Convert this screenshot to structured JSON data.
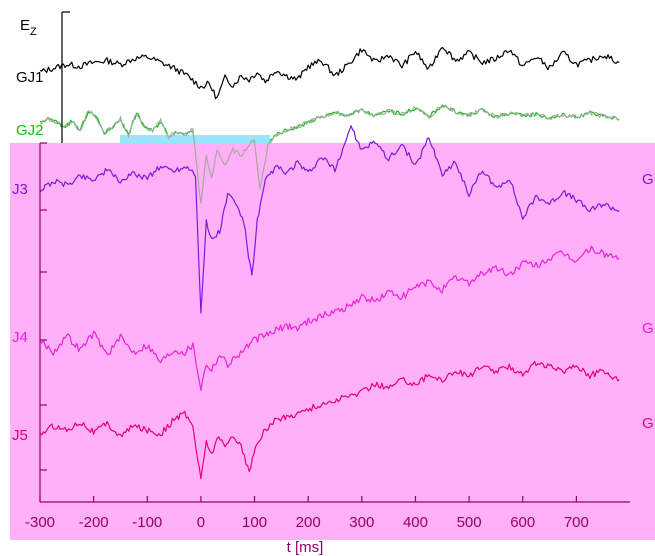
{
  "colors": {
    "overlay": "#ffb0f7",
    "axis": "#990066",
    "GJ1": "#000000",
    "GJ2": "#00c800",
    "GJ3": "#7a1adf",
    "GJ4": "#ee22dd",
    "GJ5": "#e6007a",
    "ghost": "#a8a8a8",
    "cyan_strip": "#80e0ff",
    "ylabel": "#000000"
  },
  "chart_data": {
    "type": "line",
    "title": "",
    "xlabel": "t [ms]",
    "ylabel_main": "E",
    "ylabel_sub": "Z",
    "xlim": [
      -300,
      800
    ],
    "xticks": [
      -300,
      -200,
      -100,
      0,
      100,
      200,
      300,
      400,
      500,
      600,
      700
    ],
    "xtick_labels": [
      "-300",
      "-200",
      "-100",
      "0",
      "100",
      "200",
      "300",
      "400",
      "500",
      "600",
      "700"
    ],
    "right_labels": [
      "G",
      "G",
      "G"
    ],
    "series": [
      {
        "name": "GJ1",
        "label": "GJ1",
        "label_visible": "GJ1",
        "baseline": 0,
        "x": [
          -300,
          -275,
          -250,
          -225,
          -200,
          -175,
          -150,
          -125,
          -100,
          -75,
          -50,
          -25,
          0,
          15,
          30,
          45,
          60,
          75,
          90,
          105,
          120,
          140,
          160,
          180,
          200,
          225,
          250,
          275,
          300,
          325,
          350,
          375,
          400,
          425,
          450,
          475,
          500,
          525,
          550,
          575,
          600,
          625,
          650,
          675,
          700,
          725,
          750,
          780
        ],
        "values": [
          0,
          2,
          4,
          3,
          5,
          6,
          4,
          7,
          8,
          5,
          2,
          -2,
          -8,
          -6,
          -14,
          -3,
          -7,
          -2,
          -4,
          0,
          -5,
          1,
          -2,
          -4,
          3,
          6,
          -2,
          4,
          12,
          5,
          9,
          3,
          11,
          1,
          14,
          6,
          10,
          5,
          7,
          12,
          3,
          8,
          2,
          10,
          4,
          6,
          9,
          5
        ]
      },
      {
        "name": "GJ2",
        "label": "GJ2",
        "label_visible": "GJ2",
        "baseline": 0,
        "x": [
          -300,
          -285,
          -270,
          -255,
          -240,
          -225,
          -210,
          -195,
          -180,
          -165,
          -150,
          -135,
          -120,
          -105,
          -90,
          -75,
          -60,
          -45,
          -30,
          -15,
          0,
          10,
          20,
          30,
          45,
          60,
          75,
          90,
          100,
          110,
          125,
          140,
          160,
          180,
          200,
          225,
          250,
          275,
          300,
          325,
          350,
          375,
          400,
          425,
          450,
          475,
          500,
          525,
          550,
          575,
          600,
          625,
          650,
          675,
          700,
          725,
          750,
          780
        ],
        "values": [
          2,
          6,
          3,
          -2,
          4,
          -6,
          14,
          8,
          -8,
          -2,
          6,
          -10,
          12,
          -2,
          -6,
          4,
          -12,
          -6,
          -10,
          -4,
          -80,
          -30,
          -55,
          -25,
          -40,
          -25,
          -30,
          -20,
          -15,
          -65,
          -20,
          -10,
          -5,
          -2,
          3,
          8,
          12,
          10,
          15,
          9,
          14,
          11,
          17,
          8,
          20,
          13,
          10,
          15,
          8,
          12,
          9,
          11,
          7,
          10,
          8,
          12,
          9,
          6
        ]
      },
      {
        "name": "GJ3",
        "label": "J3",
        "label_visible": "J3",
        "baseline": 0,
        "x": [
          -300,
          -275,
          -250,
          -225,
          -200,
          -175,
          -150,
          -125,
          -100,
          -75,
          -50,
          -25,
          -10,
          0,
          10,
          20,
          35,
          50,
          65,
          80,
          95,
          105,
          120,
          140,
          160,
          180,
          200,
          225,
          250,
          280,
          300,
          325,
          350,
          375,
          400,
          425,
          450,
          475,
          500,
          525,
          550,
          575,
          600,
          625,
          650,
          675,
          700,
          725,
          750,
          780
        ],
        "values": [
          -3,
          2,
          0,
          5,
          3,
          8,
          2,
          6,
          4,
          10,
          8,
          10,
          6,
          -70,
          -20,
          -30,
          -25,
          -5,
          -10,
          -20,
          -50,
          -20,
          2,
          10,
          6,
          12,
          6,
          15,
          8,
          32,
          18,
          24,
          14,
          22,
          10,
          26,
          6,
          12,
          -5,
          8,
          -2,
          4,
          -18,
          -6,
          -10,
          -4,
          -8,
          -14,
          -10,
          -14
        ]
      },
      {
        "name": "GJ4",
        "label": "J4",
        "label_visible": "J4",
        "baseline": 0,
        "x": [
          -300,
          -275,
          -250,
          -225,
          -200,
          -175,
          -150,
          -125,
          -100,
          -75,
          -50,
          -30,
          -15,
          0,
          10,
          20,
          35,
          50,
          65,
          80,
          100,
          120,
          140,
          160,
          180,
          200,
          225,
          250,
          275,
          300,
          325,
          350,
          375,
          400,
          425,
          450,
          475,
          500,
          525,
          550,
          575,
          600,
          625,
          650,
          675,
          700,
          725,
          750,
          780
        ],
        "values": [
          2,
          -3,
          4,
          -2,
          5,
          -4,
          3,
          -3,
          0,
          -7,
          -2,
          -3,
          0,
          -18,
          -8,
          -10,
          -4,
          -8,
          -5,
          -2,
          2,
          4,
          6,
          8,
          7,
          10,
          12,
          14,
          16,
          20,
          18,
          22,
          20,
          24,
          26,
          23,
          28,
          26,
          30,
          32,
          29,
          34,
          33,
          36,
          38,
          35,
          40,
          38,
          36
        ]
      },
      {
        "name": "GJ5",
        "label": "J5",
        "label_visible": "J5",
        "baseline": 0,
        "x": [
          -300,
          -275,
          -250,
          -225,
          -200,
          -175,
          -150,
          -125,
          -100,
          -75,
          -50,
          -30,
          -15,
          0,
          10,
          20,
          30,
          45,
          60,
          75,
          90,
          105,
          120,
          140,
          160,
          180,
          200,
          225,
          250,
          275,
          300,
          325,
          350,
          375,
          400,
          425,
          450,
          475,
          500,
          525,
          550,
          575,
          600,
          625,
          650,
          675,
          700,
          725,
          750,
          780
        ],
        "values": [
          -2,
          2,
          0,
          4,
          -1,
          3,
          -3,
          2,
          0,
          -2,
          5,
          8,
          2,
          -24,
          -5,
          -12,
          -3,
          -8,
          -2,
          -8,
          -20,
          -6,
          0,
          5,
          6,
          8,
          10,
          12,
          14,
          16,
          18,
          22,
          20,
          24,
          22,
          26,
          24,
          28,
          26,
          30,
          28,
          30,
          27,
          32,
          30,
          28,
          31,
          26,
          28,
          24
        ]
      }
    ]
  }
}
